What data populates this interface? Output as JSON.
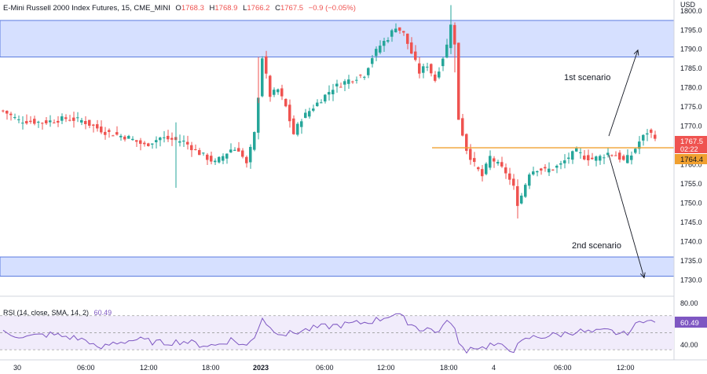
{
  "header": {
    "symbol": "E-Mini Russell 2000 Index Futures, 15, CME_MINI",
    "open_label": "O",
    "open": "1768.3",
    "high_label": "H",
    "high": "1768.9",
    "low_label": "L",
    "low": "1766.2",
    "close_label": "C",
    "close": "1767.5",
    "change": "−0.9 (−0.05%)"
  },
  "currency": "USD",
  "annotations": {
    "scenario_1": "1st scenario",
    "scenario_2": "2nd scenario"
  },
  "price_tags": {
    "last": "1767.5",
    "countdown": "02:22",
    "level": "1764.4"
  },
  "rsi": {
    "label": "RSI (14, close, SMA, 14, 2)",
    "value": "60.49",
    "ticks": [
      "80.00",
      "40.00"
    ]
  },
  "colors": {
    "up": "#26a69a",
    "down": "#ef5350",
    "zone_fill": "#d6e0ff",
    "zone_border": "#5b7be0",
    "level": "#f0a030",
    "rsi_line": "#7e57c2",
    "rsi_band": "#f1ecfb"
  },
  "chart_data": [
    {
      "type": "candlestick",
      "y_axis": {
        "ylim": [
          1726,
          1802
        ],
        "ticks": [
          "1800.0",
          "1795.0",
          "1790.0",
          "1785.0",
          "1780.0",
          "1775.0",
          "1770.0",
          "1765.0",
          "1760.0",
          "1755.0",
          "1750.0",
          "1745.0",
          "1740.0",
          "1735.0",
          "1730.0"
        ]
      },
      "x_axis": {
        "ticks": [
          "30",
          "06:00",
          "12:00",
          "18:00",
          "2023",
          "06:00",
          "12:00",
          "18:00",
          "4",
          "06:00",
          "12:00"
        ]
      },
      "zones": [
        {
          "from": 1788,
          "to": 1797.5
        },
        {
          "from": 1731,
          "to": 1736
        }
      ],
      "level_line": 1764.4,
      "scenarios": [
        {
          "label": "1st scenario",
          "from": 1765,
          "to": 1790
        },
        {
          "label": "2nd scenario",
          "from": 1765,
          "to": 1731
        }
      ],
      "close_path": [
        [
          0,
          1774
        ],
        [
          4,
          1771.5
        ],
        [
          10,
          1771
        ],
        [
          16,
          1772
        ],
        [
          20,
          1771.5
        ],
        [
          26,
          1768.5
        ],
        [
          32,
          1767
        ],
        [
          36,
          1765
        ],
        [
          40,
          1767
        ],
        [
          46,
          1766
        ],
        [
          50,
          1763
        ],
        [
          54,
          1760.5
        ],
        [
          58,
          1764
        ],
        [
          60,
          1764
        ],
        [
          62,
          1760
        ],
        [
          64,
          1768
        ],
        [
          66,
          1788
        ],
        [
          68,
          1778
        ],
        [
          70,
          1779.5
        ],
        [
          72,
          1775
        ],
        [
          74,
          1768
        ],
        [
          76,
          1772
        ],
        [
          80,
          1776
        ],
        [
          84,
          1780
        ],
        [
          88,
          1782
        ],
        [
          92,
          1783.5
        ],
        [
          94,
          1788
        ],
        [
          96,
          1791
        ],
        [
          98,
          1793
        ],
        [
          100,
          1796
        ],
        [
          102,
          1794
        ],
        [
          104,
          1789
        ],
        [
          106,
          1784
        ],
        [
          108,
          1786
        ],
        [
          110,
          1782
        ],
        [
          112,
          1788
        ],
        [
          113,
          1791
        ],
        [
          114,
          1797
        ],
        [
          115,
          1791
        ],
        [
          116,
          1772
        ],
        [
          118,
          1764
        ],
        [
          120,
          1760
        ],
        [
          122,
          1757
        ],
        [
          124,
          1762
        ],
        [
          126,
          1760
        ],
        [
          128,
          1758
        ],
        [
          130,
          1754
        ],
        [
          131,
          1750
        ],
        [
          132,
          1752
        ],
        [
          134,
          1758
        ],
        [
          136,
          1759
        ],
        [
          138,
          1758.5
        ],
        [
          140,
          1759
        ],
        [
          142,
          1760
        ],
        [
          144,
          1762
        ],
        [
          146,
          1763.5
        ],
        [
          148,
          1762
        ],
        [
          150,
          1761.5
        ],
        [
          152,
          1762
        ],
        [
          154,
          1763
        ],
        [
          156,
          1762.5
        ],
        [
          158,
          1761
        ],
        [
          160,
          1762.5
        ],
        [
          162,
          1766
        ],
        [
          164,
          1768.5
        ],
        [
          166,
          1767.5
        ]
      ]
    },
    {
      "type": "line",
      "name": "RSI",
      "ylim": [
        20,
        90
      ],
      "band": [
        30,
        70
      ],
      "close_path": [
        [
          0,
          50
        ],
        [
          6,
          45
        ],
        [
          12,
          48
        ],
        [
          18,
          44
        ],
        [
          22,
          40
        ],
        [
          24,
          30
        ],
        [
          28,
          38
        ],
        [
          34,
          42
        ],
        [
          40,
          38
        ],
        [
          46,
          40
        ],
        [
          50,
          36
        ],
        [
          54,
          35
        ],
        [
          58,
          42
        ],
        [
          62,
          34
        ],
        [
          64,
          46
        ],
        [
          66,
          68
        ],
        [
          68,
          55
        ],
        [
          72,
          48
        ],
        [
          76,
          52
        ],
        [
          80,
          56
        ],
        [
          84,
          58
        ],
        [
          88,
          60
        ],
        [
          92,
          62
        ],
        [
          96,
          66
        ],
        [
          98,
          70
        ],
        [
          100,
          72
        ],
        [
          102,
          66
        ],
        [
          104,
          60
        ],
        [
          106,
          54
        ],
        [
          108,
          56
        ],
        [
          110,
          50
        ],
        [
          112,
          58
        ],
        [
          114,
          64
        ],
        [
          115,
          54
        ],
        [
          116,
          35
        ],
        [
          118,
          30
        ],
        [
          120,
          34
        ],
        [
          122,
          32
        ],
        [
          124,
          36
        ],
        [
          126,
          34
        ],
        [
          128,
          33
        ],
        [
          130,
          30
        ],
        [
          132,
          38
        ],
        [
          134,
          44
        ],
        [
          138,
          46
        ],
        [
          142,
          48
        ],
        [
          146,
          52
        ],
        [
          150,
          50
        ],
        [
          154,
          52
        ],
        [
          158,
          48
        ],
        [
          160,
          54
        ],
        [
          162,
          62
        ],
        [
          164,
          68
        ],
        [
          166,
          60
        ]
      ]
    }
  ]
}
